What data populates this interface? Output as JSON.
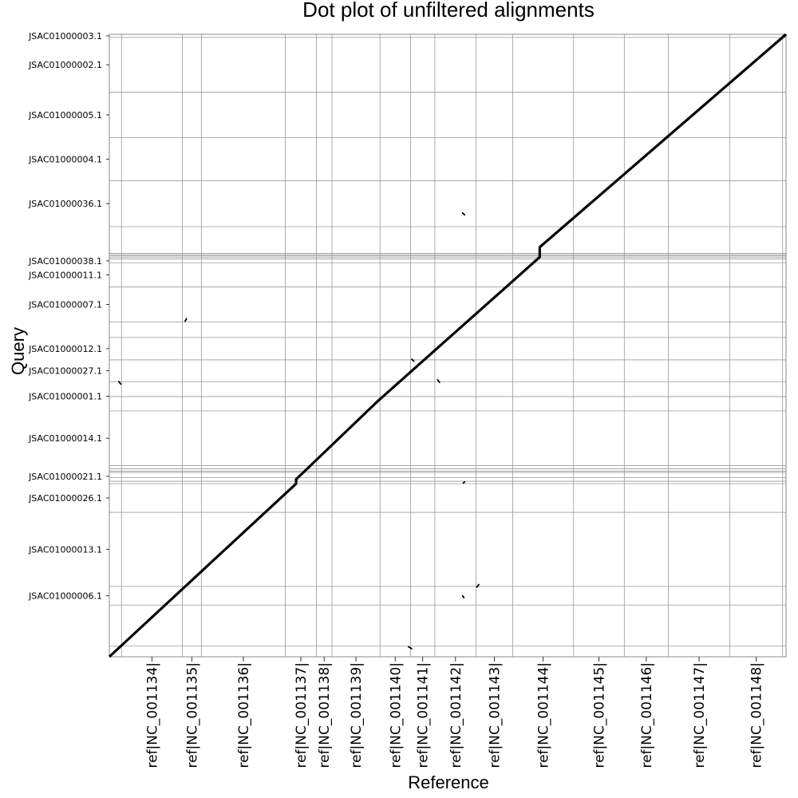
{
  "chart_data": {
    "type": "scatter",
    "title": "Dot plot of unfiltered alignments",
    "xlabel": "Reference",
    "ylabel": "Query",
    "grid": true,
    "legend": "none",
    "xlim": [
      0,
      1
    ],
    "ylim": [
      0,
      1
    ],
    "x_ticks": [
      {
        "label": "ref|NC_001134|",
        "start": 0.018,
        "end": 0.108
      },
      {
        "label": "ref|NC_001135|",
        "start": 0.108,
        "end": 0.136
      },
      {
        "label": "ref|NC_001136|",
        "start": 0.136,
        "end": 0.26
      },
      {
        "label": "ref|NC_001137|",
        "start": 0.26,
        "end": 0.306
      },
      {
        "label": "ref|NC_001138|",
        "start": 0.306,
        "end": 0.329
      },
      {
        "label": "ref|NC_001139|",
        "start": 0.329,
        "end": 0.4
      },
      {
        "label": "ref|NC_001140|",
        "start": 0.4,
        "end": 0.445
      },
      {
        "label": "ref|NC_001141|",
        "start": 0.445,
        "end": 0.481
      },
      {
        "label": "ref|NC_001142|",
        "start": 0.481,
        "end": 0.542
      },
      {
        "label": "ref|NC_001143|",
        "start": 0.542,
        "end": 0.596
      },
      {
        "label": "ref|NC_001144|",
        "start": 0.596,
        "end": 0.686
      },
      {
        "label": "ref|NC_001145|",
        "start": 0.686,
        "end": 0.761
      },
      {
        "label": "ref|NC_001146|",
        "start": 0.761,
        "end": 0.826
      },
      {
        "label": "ref|NC_001147|",
        "start": 0.826,
        "end": 0.917
      },
      {
        "label": "ref|NC_001148|",
        "start": 0.917,
        "end": 0.995
      }
    ],
    "x_extra_boundaries": [
      0.0,
      0.995,
      1.0
    ],
    "y_ticks": [
      {
        "label": "JSAC01000003.1",
        "start": 0.995,
        "end": 1.0
      },
      {
        "label": "JSAC01000002.1",
        "start": 0.907,
        "end": 0.995
      },
      {
        "label": "JSAC01000005.1",
        "start": 0.834,
        "end": 0.907
      },
      {
        "label": "JSAC01000004.1",
        "start": 0.765,
        "end": 0.834
      },
      {
        "label": "JSAC01000036.1",
        "start": 0.691,
        "end": 0.765
      },
      {
        "label": "JSAC01000038.1",
        "start": 0.633,
        "end": 0.639
      },
      {
        "label": "JSAC01000011.1",
        "start": 0.594,
        "end": 0.633
      },
      {
        "label": "JSAC01000007.1",
        "start": 0.538,
        "end": 0.594
      },
      {
        "label": "JSAC01000012.1",
        "start": 0.477,
        "end": 0.513
      },
      {
        "label": "JSAC01000027.1",
        "start": 0.442,
        "end": 0.477
      },
      {
        "label": "JSAC01000001.1",
        "start": 0.395,
        "end": 0.442
      },
      {
        "label": "JSAC01000014.1",
        "start": 0.307,
        "end": 0.395
      },
      {
        "label": "JSAC01000021.1",
        "start": 0.278,
        "end": 0.302
      },
      {
        "label": "JSAC01000026.1",
        "start": 0.232,
        "end": 0.278
      },
      {
        "label": "JSAC01000013.1",
        "start": 0.113,
        "end": 0.232
      },
      {
        "label": "JSAC01000006.1",
        "start": 0.083,
        "end": 0.113
      }
    ],
    "y_extra_boundaries": [
      0.0,
      0.017,
      0.083,
      0.113,
      0.232,
      0.278,
      0.282,
      0.288,
      0.296,
      0.298,
      0.302,
      0.307,
      0.395,
      0.418,
      0.442,
      0.477,
      0.513,
      0.538,
      0.594,
      0.633,
      0.639,
      0.642,
      0.644,
      0.646,
      0.648,
      0.691,
      0.765,
      0.834,
      0.907,
      0.995,
      1.0
    ],
    "main_alignment": [
      [
        0.0,
        0.0
      ],
      [
        0.276,
        0.278
      ],
      [
        0.276,
        0.285
      ],
      [
        0.397,
        0.411
      ],
      [
        0.636,
        0.642
      ],
      [
        0.636,
        0.658
      ],
      [
        1.0,
        1.0
      ]
    ],
    "small_alignments": [
      [
        [
          0.112,
          0.539
        ],
        [
          0.114,
          0.543
        ]
      ],
      [
        [
          0.014,
          0.442
        ],
        [
          0.017,
          0.438
        ]
      ],
      [
        [
          0.447,
          0.478
        ],
        [
          0.45,
          0.475
        ]
      ],
      [
        [
          0.485,
          0.445
        ],
        [
          0.488,
          0.441
        ]
      ],
      [
        [
          0.522,
          0.713
        ],
        [
          0.525,
          0.71
        ]
      ],
      [
        [
          0.523,
          0.279
        ],
        [
          0.525,
          0.281
        ]
      ],
      [
        [
          0.543,
          0.112
        ],
        [
          0.546,
          0.116
        ]
      ],
      [
        [
          0.522,
          0.098
        ],
        [
          0.524,
          0.095
        ]
      ],
      [
        [
          0.442,
          0.016
        ],
        [
          0.447,
          0.013
        ]
      ]
    ]
  }
}
